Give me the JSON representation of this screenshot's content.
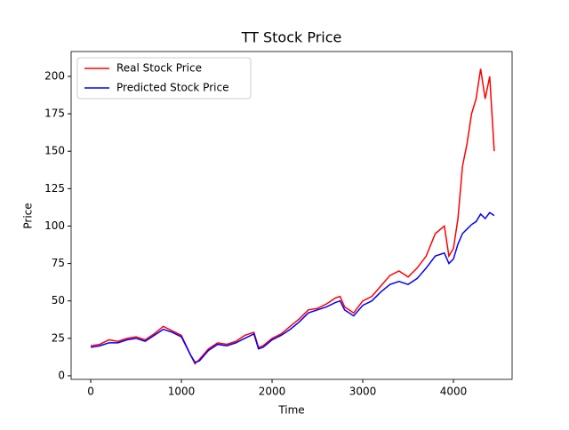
{
  "chart_data": {
    "type": "line",
    "title": "TT Stock Price",
    "x_label": "Time",
    "y_label": "Price",
    "x": [
      0,
      100,
      200,
      300,
      400,
      500,
      600,
      700,
      800,
      900,
      1000,
      1100,
      1150,
      1200,
      1300,
      1400,
      1500,
      1600,
      1700,
      1800,
      1850,
      1900,
      2000,
      2100,
      2200,
      2300,
      2400,
      2500,
      2600,
      2700,
      2750,
      2800,
      2900,
      3000,
      3100,
      3200,
      3300,
      3400,
      3500,
      3600,
      3700,
      3800,
      3900,
      3950,
      4000,
      4050,
      4100,
      4150,
      4200,
      4250,
      4300,
      4350,
      4400,
      4450
    ],
    "series": [
      {
        "name": "Real Stock Price",
        "color": "#ff0000",
        "values": [
          20,
          21,
          24,
          23,
          25,
          26,
          24,
          28,
          33,
          30,
          27,
          14,
          8,
          11,
          18,
          22,
          21,
          23,
          27,
          29,
          19,
          20,
          25,
          28,
          33,
          38,
          44,
          45,
          48,
          52,
          53,
          46,
          42,
          50,
          53,
          60,
          67,
          70,
          66,
          72,
          80,
          95,
          100,
          80,
          85,
          105,
          140,
          155,
          175,
          185,
          205,
          185,
          200,
          150
        ]
      },
      {
        "name": "Predicted Stock Price",
        "color": "#0000ff",
        "values": [
          19,
          20,
          22,
          22,
          24,
          25,
          23,
          27,
          31,
          29,
          26,
          14,
          9,
          10,
          17,
          21,
          20,
          22,
          25,
          28,
          18,
          19,
          24,
          27,
          31,
          36,
          42,
          44,
          46,
          49,
          50,
          44,
          40,
          47,
          50,
          56,
          61,
          63,
          61,
          65,
          72,
          80,
          82,
          75,
          78,
          88,
          95,
          98,
          101,
          103,
          108,
          105,
          109,
          107
        ]
      }
    ],
    "xlim": [
      -216,
      4647
    ],
    "ylim": [
      -2.4,
      216.6
    ],
    "xticks": [
      0,
      1000,
      2000,
      3000,
      4000
    ],
    "yticks": [
      0,
      25,
      50,
      75,
      100,
      125,
      150,
      175,
      200
    ],
    "legend": "upper left"
  }
}
